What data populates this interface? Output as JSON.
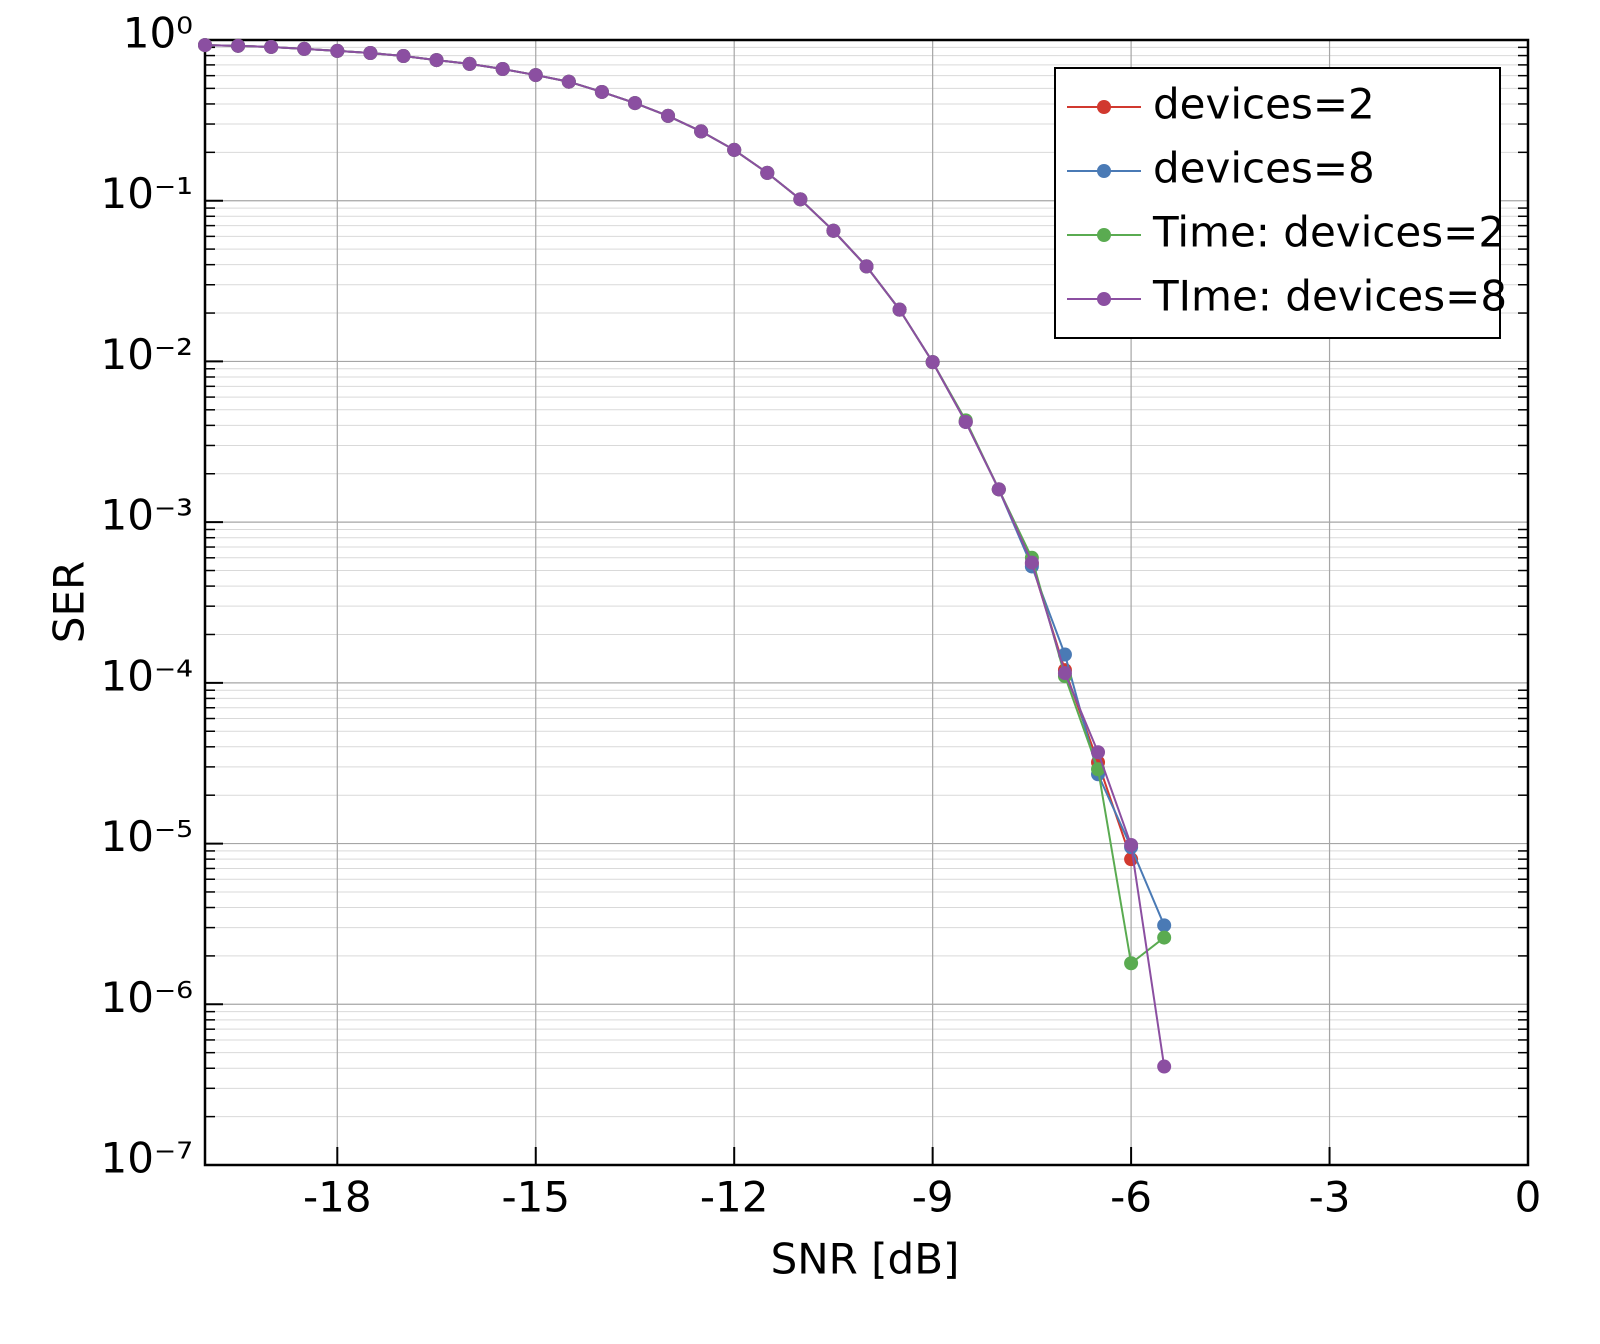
{
  "chart_data": {
    "type": "line",
    "x_label": "SNR [dB]",
    "y_label": "SER",
    "x": [
      -20,
      -19.5,
      -19,
      -18.5,
      -18,
      -17.5,
      -17,
      -16.5,
      -16,
      -15.5,
      -15,
      -14.5,
      -14,
      -13.5,
      -13,
      -12.5,
      -12,
      -11.5,
      -11,
      -10.5,
      -10,
      -9.5,
      -9,
      -8.5,
      -8,
      -7.5,
      -7,
      -6.5,
      -6,
      -5.5
    ],
    "series": [
      {
        "name": "devices=2",
        "color": "#d1392f",
        "values": [
          0.93,
          0.92,
          0.905,
          0.88,
          0.855,
          0.83,
          0.795,
          0.75,
          0.71,
          0.66,
          0.605,
          0.55,
          0.475,
          0.405,
          0.337,
          0.27,
          0.207,
          0.149,
          0.102,
          0.065,
          0.039,
          0.021,
          0.0099,
          0.0042,
          0.0016,
          0.00055,
          0.00012,
          3.2e-05,
          8e-06,
          null
        ]
      },
      {
        "name": "devices=8",
        "color": "#4a7ab5",
        "values": [
          0.93,
          0.92,
          0.905,
          0.88,
          0.855,
          0.83,
          0.795,
          0.75,
          0.71,
          0.66,
          0.605,
          0.55,
          0.475,
          0.405,
          0.337,
          0.27,
          0.207,
          0.149,
          0.102,
          0.065,
          0.039,
          0.021,
          0.0099,
          0.0042,
          0.0016,
          0.00053,
          0.00015,
          2.7e-05,
          9.5e-06,
          3.1e-06
        ]
      },
      {
        "name": "Time: devices=2",
        "color": "#5aab51",
        "values": [
          0.93,
          0.92,
          0.905,
          0.88,
          0.855,
          0.83,
          0.795,
          0.75,
          0.71,
          0.66,
          0.605,
          0.55,
          0.475,
          0.405,
          0.337,
          0.27,
          0.207,
          0.149,
          0.102,
          0.065,
          0.039,
          0.021,
          0.0099,
          0.0043,
          0.0016,
          0.0006,
          0.00011,
          2.9e-05,
          1.8e-06,
          2.6e-06
        ]
      },
      {
        "name": "TIme: devices=8",
        "color": "#8b4fa1",
        "values": [
          0.93,
          0.92,
          0.905,
          0.88,
          0.855,
          0.83,
          0.795,
          0.75,
          0.71,
          0.66,
          0.605,
          0.55,
          0.475,
          0.405,
          0.337,
          0.27,
          0.207,
          0.149,
          0.102,
          0.065,
          0.039,
          0.021,
          0.0099,
          0.0042,
          0.0016,
          0.00056,
          0.000115,
          3.7e-05,
          9.8e-06,
          4.1e-07
        ]
      }
    ],
    "xlim": [
      -20,
      0
    ],
    "xticks": [
      -18,
      -15,
      -12,
      -9,
      -6,
      -3,
      0
    ],
    "ylim": [
      1e-07,
      1
    ],
    "y_scale": "log",
    "yticks": [
      {
        "value": 1e-07,
        "label": "10⁻⁷"
      },
      {
        "value": 1e-06,
        "label": "10⁻⁶"
      },
      {
        "value": 1e-05,
        "label": "10⁻⁵"
      },
      {
        "value": 0.0001,
        "label": "10⁻⁴"
      },
      {
        "value": 0.001,
        "label": "10⁻³"
      },
      {
        "value": 0.01,
        "label": "10⁻²"
      },
      {
        "value": 0.1,
        "label": "10⁻¹"
      },
      {
        "value": 1,
        "label": "10⁰"
      }
    ],
    "grid": true,
    "legend": "upper right"
  }
}
